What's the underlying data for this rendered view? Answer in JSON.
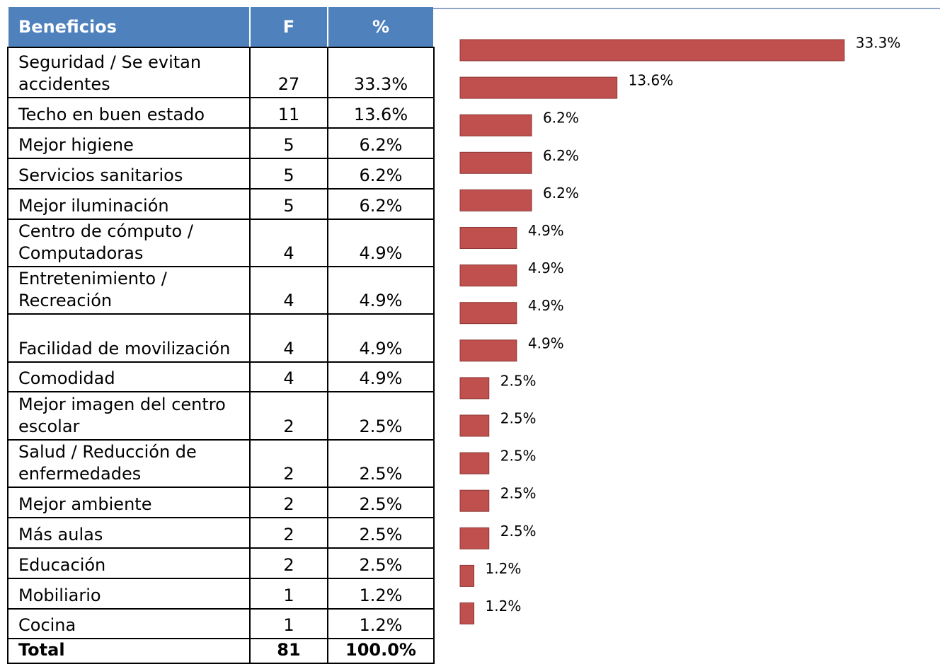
{
  "table": {
    "headers": [
      "Beneficios",
      "F",
      "%"
    ],
    "rows": [
      [
        "Seguridad / Se evitan accidentes",
        "27",
        "33.3%"
      ],
      [
        "Techo en buen estado",
        "11",
        "13.6%"
      ],
      [
        "Mejor higiene",
        "5",
        "6.2%"
      ],
      [
        "Servicios sanitarios",
        "5",
        "6.2%"
      ],
      [
        "Mejor iluminación",
        "5",
        "6.2%"
      ],
      [
        "Centro de cómputo / Computadoras",
        "4",
        "4.9%"
      ],
      [
        "Entretenimiento / Recreación",
        "4",
        "4.9%"
      ],
      [
        "Facilidad de movilización",
        "4",
        "4.9%"
      ],
      [
        "Comodidad",
        "4",
        "4.9%"
      ],
      [
        "Mejor imagen del centro escolar",
        "2",
        "2.5%"
      ],
      [
        "Salud / Reducción de enfermedades",
        "2",
        "2.5%"
      ],
      [
        "Mejor ambiente",
        "2",
        "2.5%"
      ],
      [
        "Más aulas",
        "2",
        "2.5%"
      ],
      [
        "Educación",
        "2",
        "2.5%"
      ],
      [
        "Mobiliario",
        "1",
        "1.2%"
      ],
      [
        "Cocina",
        "1",
        "1.2%"
      ]
    ],
    "total": [
      "Total",
      "81",
      "100.0%"
    ]
  },
  "chart_data": {
    "type": "hbar",
    "color": "#c0504d",
    "values": [
      33.3,
      13.6,
      6.2,
      6.2,
      6.2,
      4.9,
      4.9,
      4.9,
      4.9,
      2.5,
      2.5,
      2.5,
      2.5,
      2.5,
      1.2,
      1.2
    ],
    "value_labels": [
      "33.3%",
      "13.6%",
      "6.2%",
      "6.2%",
      "6.2%",
      "4.9%",
      "4.9%",
      "4.9%",
      "4.9%",
      "2.5%",
      "2.5%",
      "2.5%",
      "2.5%",
      "2.5%",
      "1.2%",
      "1.2%"
    ]
  }
}
